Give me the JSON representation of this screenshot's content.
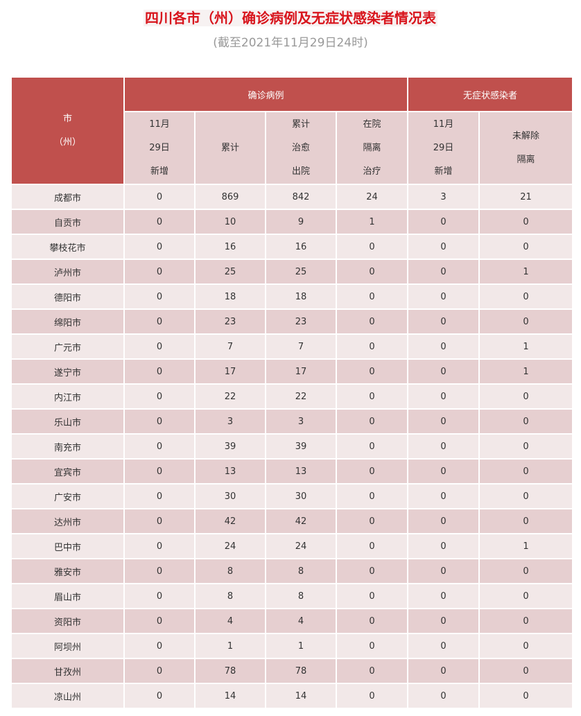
{
  "title": "四川各市（州）确诊病例及无症状感染者情况表",
  "subtitle": "(截至2021年11月29日24时)",
  "header": {
    "city": [
      "市",
      "（州）"
    ],
    "confirmed_group": "确诊病例",
    "asymptomatic_group": "无症状感染者",
    "columns": [
      [
        "11月",
        "29日",
        "新增"
      ],
      [
        "累计"
      ],
      [
        "累计",
        "治愈",
        "出院"
      ],
      [
        "在院",
        "隔离",
        "治疗"
      ],
      [
        "11月",
        "29日",
        "新增"
      ],
      [
        "未解除",
        "隔离"
      ]
    ]
  },
  "colors": {
    "header": "#c0504d",
    "title": "#d8141c",
    "row_light": "#f2e8e8",
    "row_dark": "#e6cfd0"
  },
  "rows": [
    [
      "成都市",
      "0",
      "869",
      "842",
      "24",
      "3",
      "21"
    ],
    [
      "自贡市",
      "0",
      "10",
      "9",
      "1",
      "0",
      "0"
    ],
    [
      "攀枝花市",
      "0",
      "16",
      "16",
      "0",
      "0",
      "0"
    ],
    [
      "泸州市",
      "0",
      "25",
      "25",
      "0",
      "0",
      "1"
    ],
    [
      "德阳市",
      "0",
      "18",
      "18",
      "0",
      "0",
      "0"
    ],
    [
      "绵阳市",
      "0",
      "23",
      "23",
      "0",
      "0",
      "0"
    ],
    [
      "广元市",
      "0",
      "7",
      "7",
      "0",
      "0",
      "1"
    ],
    [
      "遂宁市",
      "0",
      "17",
      "17",
      "0",
      "0",
      "1"
    ],
    [
      "内江市",
      "0",
      "22",
      "22",
      "0",
      "0",
      "0"
    ],
    [
      "乐山市",
      "0",
      "3",
      "3",
      "0",
      "0",
      "0"
    ],
    [
      "南充市",
      "0",
      "39",
      "39",
      "0",
      "0",
      "0"
    ],
    [
      "宜宾市",
      "0",
      "13",
      "13",
      "0",
      "0",
      "0"
    ],
    [
      "广安市",
      "0",
      "30",
      "30",
      "0",
      "0",
      "0"
    ],
    [
      "达州市",
      "0",
      "42",
      "42",
      "0",
      "0",
      "0"
    ],
    [
      "巴中市",
      "0",
      "24",
      "24",
      "0",
      "0",
      "1"
    ],
    [
      "雅安市",
      "0",
      "8",
      "8",
      "0",
      "0",
      "0"
    ],
    [
      "眉山市",
      "0",
      "8",
      "8",
      "0",
      "0",
      "0"
    ],
    [
      "资阳市",
      "0",
      "4",
      "4",
      "0",
      "0",
      "0"
    ],
    [
      "阿坝州",
      "0",
      "1",
      "1",
      "0",
      "0",
      "0"
    ],
    [
      "甘孜州",
      "0",
      "78",
      "78",
      "0",
      "0",
      "0"
    ],
    [
      "凉山州",
      "0",
      "14",
      "14",
      "0",
      "0",
      "0"
    ]
  ]
}
